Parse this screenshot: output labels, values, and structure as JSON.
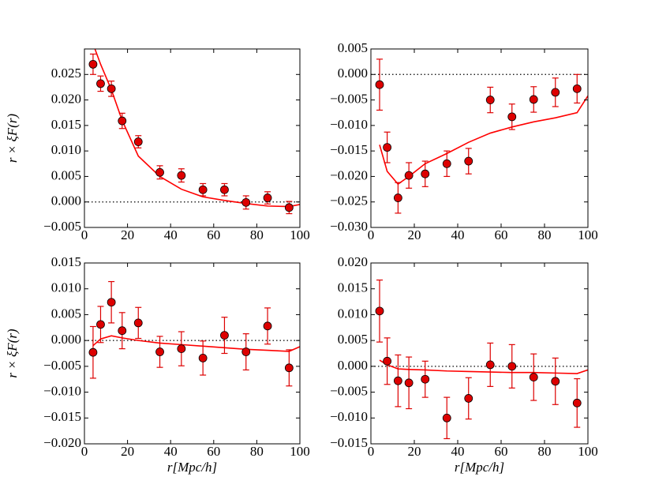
{
  "chart_data": [
    {
      "type": "errorbar",
      "y_label": "r × ξF(r)",
      "xlim": [
        0,
        100
      ],
      "xticks": [
        0,
        20,
        40,
        60,
        80,
        100
      ],
      "ylim": [
        -0.005,
        0.03
      ],
      "yticks": [
        {
          "value": -0.005,
          "label": "−0.005"
        },
        {
          "value": 0,
          "label": "0.000"
        },
        0.005,
        {
          "value": 0.01,
          "label": "0.010"
        },
        0.015,
        {
          "value": 0.02,
          "label": "0.020"
        },
        0.025
      ],
      "hline": 0,
      "series": [
        {
          "color": "#ff0000",
          "style": "line",
          "x": [
            4,
            7.5,
            12.5,
            17.5,
            25,
            35,
            45,
            55,
            65,
            75,
            85,
            95,
            100
          ],
          "values": [
            0.031,
            0.027,
            0.022,
            0.016,
            0.009,
            0.005,
            0.0025,
            0.001,
            0.0003,
            -0.0003,
            -0.0008,
            -0.0009,
            -0.0005
          ]
        },
        {
          "color": "#dd0000",
          "style": "points",
          "x": [
            4,
            7.5,
            12.5,
            17.5,
            25,
            35,
            45,
            55,
            65,
            75,
            85,
            95
          ],
          "values": [
            0.027,
            0.0232,
            0.0222,
            0.0159,
            0.0118,
            0.0058,
            0.0052,
            0.0024,
            0.0024,
            -0.0001,
            0.0008,
            -0.0011
          ],
          "errors": [
            0.002,
            0.0015,
            0.0015,
            0.0015,
            0.0012,
            0.0013,
            0.0013,
            0.0012,
            0.0012,
            0.0013,
            0.0012,
            0.0012
          ]
        }
      ]
    },
    {
      "type": "errorbar",
      "xlim": [
        0,
        100
      ],
      "xticks": [
        0,
        20,
        40,
        60,
        80,
        100
      ],
      "ylim": [
        -0.03,
        0.005
      ],
      "yticks": [
        {
          "value": -0.03,
          "label": "−0.030"
        },
        {
          "value": -0.025,
          "label": "−0.025"
        },
        {
          "value": -0.02,
          "label": "−0.020"
        },
        {
          "value": -0.015,
          "label": "−0.015"
        },
        {
          "value": -0.01,
          "label": "−0.010"
        },
        {
          "value": -0.005,
          "label": "−0.005"
        },
        {
          "value": 0,
          "label": "0.000"
        },
        0.005
      ],
      "hline": 0,
      "series": [
        {
          "color": "#ff0000",
          "style": "line",
          "x": [
            4,
            7.5,
            12.5,
            17.5,
            25,
            35,
            45,
            55,
            65,
            75,
            85,
            95,
            100
          ],
          "values": [
            -0.0138,
            -0.019,
            -0.0215,
            -0.02,
            -0.0175,
            -0.0155,
            -0.0133,
            -0.0115,
            -0.0103,
            -0.0093,
            -0.0085,
            -0.0075,
            -0.0042
          ]
        },
        {
          "color": "#dd0000",
          "style": "points",
          "x": [
            4,
            7.5,
            12.5,
            17.5,
            25,
            35,
            45,
            55,
            65,
            75,
            85,
            95
          ],
          "values": [
            -0.002,
            -0.0143,
            -0.0242,
            -0.0198,
            -0.0195,
            -0.0175,
            -0.017,
            -0.005,
            -0.0083,
            -0.0049,
            -0.0035,
            -0.0028
          ],
          "errors": [
            0.005,
            0.003,
            0.003,
            0.0025,
            0.0025,
            0.0025,
            0.0025,
            0.0025,
            0.0025,
            0.0025,
            0.0028,
            0.0028
          ]
        }
      ]
    },
    {
      "type": "errorbar",
      "y_label": "r × ξF(r)",
      "x_label": "r[Mpc/h]",
      "xlim": [
        0,
        100
      ],
      "xticks": [
        0,
        20,
        40,
        60,
        80,
        100
      ],
      "ylim": [
        -0.02,
        0.015
      ],
      "yticks": [
        {
          "value": -0.02,
          "label": "−0.020"
        },
        {
          "value": -0.015,
          "label": "−0.015"
        },
        {
          "value": -0.01,
          "label": "−0.010"
        },
        {
          "value": -0.005,
          "label": "−0.005"
        },
        {
          "value": 0,
          "label": "0.000"
        },
        0.005,
        {
          "value": 0.01,
          "label": "0.010"
        },
        0.015
      ],
      "hline": 0,
      "series": [
        {
          "color": "#ff0000",
          "style": "line",
          "x": [
            4,
            7.5,
            12.5,
            17.5,
            25,
            35,
            45,
            55,
            65,
            75,
            85,
            95,
            100
          ],
          "values": [
            -0.001,
            0.0003,
            0.0009,
            0.0005,
            0.0,
            -0.0005,
            -0.0008,
            -0.0011,
            -0.0014,
            -0.0017,
            -0.0019,
            -0.0021,
            -0.0012
          ]
        },
        {
          "color": "#dd0000",
          "style": "points",
          "x": [
            4,
            7.5,
            12.5,
            17.5,
            25,
            35,
            45,
            55,
            65,
            75,
            85,
            95
          ],
          "values": [
            -0.0023,
            0.0031,
            0.0074,
            0.0019,
            0.0034,
            -0.0022,
            -0.0016,
            -0.0034,
            0.001,
            -0.0022,
            0.0028,
            -0.0053
          ],
          "errors": [
            0.005,
            0.0035,
            0.004,
            0.0035,
            0.003,
            0.003,
            0.0033,
            0.0033,
            0.0035,
            0.0035,
            0.0035,
            0.0035
          ]
        }
      ]
    },
    {
      "type": "errorbar",
      "x_label": "r[Mpc/h]",
      "xlim": [
        0,
        100
      ],
      "xticks": [
        0,
        20,
        40,
        60,
        80,
        100
      ],
      "ylim": [
        -0.015,
        0.02
      ],
      "yticks": [
        {
          "value": -0.015,
          "label": "−0.015"
        },
        {
          "value": -0.01,
          "label": "−0.010"
        },
        {
          "value": -0.005,
          "label": "−0.005"
        },
        {
          "value": 0,
          "label": "0.000"
        },
        0.005,
        {
          "value": 0.01,
          "label": "0.010"
        },
        0.015,
        {
          "value": 0.02,
          "label": "0.020"
        }
      ],
      "hline": 0,
      "series": [
        {
          "color": "#ff0000",
          "style": "line",
          "x": [
            4,
            7.5,
            12.5,
            17.5,
            25,
            35,
            45,
            55,
            65,
            75,
            85,
            95,
            100
          ],
          "values": [
            0.0012,
            0.0003,
            -0.0005,
            -0.0006,
            -0.0007,
            -0.0009,
            -0.001,
            -0.0011,
            -0.0012,
            -0.0012,
            -0.0013,
            -0.0014,
            -0.0007
          ]
        },
        {
          "color": "#dd0000",
          "style": "points",
          "x": [
            4,
            7.5,
            12.5,
            17.5,
            25,
            35,
            45,
            55,
            65,
            75,
            85,
            95
          ],
          "values": [
            0.0107,
            0.001,
            -0.0028,
            -0.0032,
            -0.0025,
            -0.01,
            -0.0062,
            0.0003,
            0.0,
            -0.0021,
            -0.0029,
            -0.0071
          ],
          "errors": [
            0.006,
            0.0045,
            0.005,
            0.005,
            0.0035,
            0.004,
            0.004,
            0.0042,
            0.0042,
            0.0045,
            0.0045,
            0.0047
          ]
        }
      ]
    }
  ]
}
